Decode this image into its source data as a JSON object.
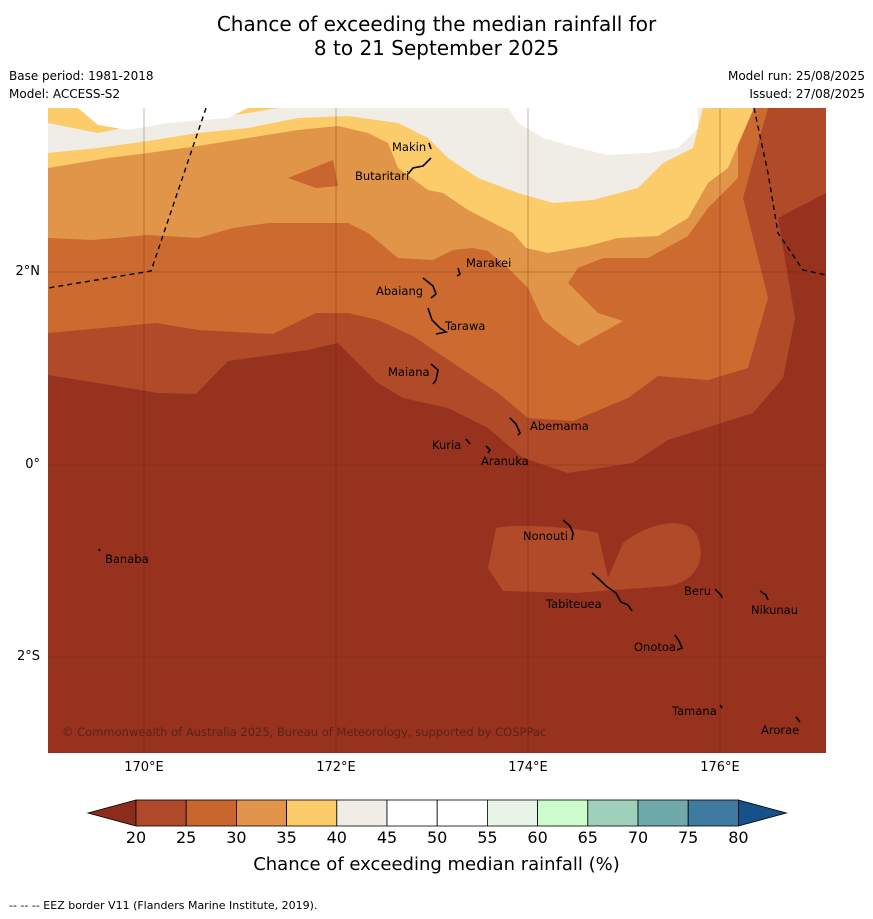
{
  "title_line1": "Chance of exceeding the median rainfall for",
  "title_line2": "8 to 21 September 2025",
  "base_period": "Base period: 1981-2018",
  "model": "Model: ACCESS-S2",
  "model_run": "Model run: 25/08/2025",
  "issued": "Issued: 27/08/2025",
  "copyright": "© Commonwealth of Australia 2025, Bureau of Meteorology, supported by COSPPac",
  "lat_labels": [
    "2°N",
    "0°",
    "2°S"
  ],
  "lon_labels": [
    "170°E",
    "172°E",
    "174°E",
    "176°E"
  ],
  "places": [
    "Makin",
    "Butaritari",
    "Marakei",
    "Abaiang",
    "Tarawa",
    "Maiana",
    "Abemama",
    "Kuria",
    "Aranuka",
    "Nonouti",
    "Banaba",
    "Tabiteuea",
    "Beru",
    "Nikunau",
    "Onotoa",
    "Tamana",
    "Arorae"
  ],
  "colorbar": {
    "ticks": [
      "20",
      "25",
      "30",
      "35",
      "40",
      "45",
      "50",
      "55",
      "60",
      "65",
      "70",
      "75",
      "80"
    ],
    "colors": [
      "#8c2d1b",
      "#b0492a",
      "#c9652f",
      "#e1944a",
      "#fccb6a",
      "#f0ece6",
      "#ffffff",
      "#ffffff",
      "#e9f4e8",
      "#ccfccb",
      "#9fd0bb",
      "#70a9a9",
      "#3f7aa0",
      "#17518a"
    ],
    "label": "Chance of exceeding median rainfall (%)"
  },
  "footer": "--  --  -- EEZ border V11 (Flanders Marine Institute, 2019)."
}
